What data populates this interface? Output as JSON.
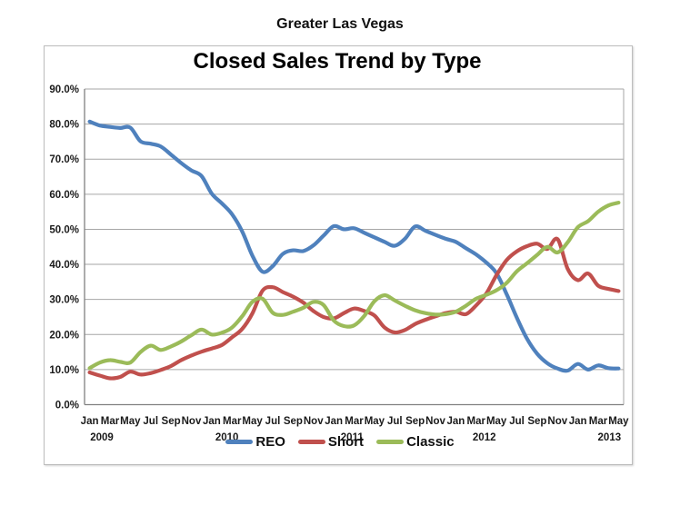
{
  "page": {
    "supertitle": "Greater Las Vegas"
  },
  "chart": {
    "title": "Closed Sales Trend by Type"
  },
  "chart_data": {
    "type": "line",
    "title": "Closed Sales Trend by Type",
    "subtitle": "Greater Las Vegas",
    "x_start": "Jan 2009",
    "x_end": "May 2013",
    "x_unit": "month",
    "n_points": 53,
    "ylim": [
      0,
      90
    ],
    "ytick_step": 10,
    "grid": true,
    "legend_position": "bottom",
    "line_style": "smooth",
    "ytick_labels": [
      "0.0%",
      "10.0%",
      "20.0%",
      "30.0%",
      "40.0%",
      "50.0%",
      "60.0%",
      "70.0%",
      "80.0%",
      "90.0%"
    ],
    "xtick_labels": [
      "Jan",
      "Mar",
      "May",
      "Jul",
      "Sep",
      "Nov",
      "Jan",
      "Mar",
      "May",
      "Jul",
      "Sep",
      "Nov",
      "Jan",
      "Mar",
      "May",
      "Jul",
      "Sep",
      "Nov",
      "Jan",
      "Mar",
      "May",
      "Jul",
      "Sep",
      "Nov",
      "Jan",
      "Mar",
      "May"
    ],
    "xtick_month_indices": [
      0,
      2,
      4,
      6,
      8,
      10,
      12,
      14,
      16,
      18,
      20,
      22,
      24,
      26,
      28,
      30,
      32,
      34,
      36,
      38,
      40,
      42,
      44,
      46,
      48,
      50,
      52
    ],
    "years": [
      {
        "label": "2009",
        "month_index": 1.2
      },
      {
        "label": "2010",
        "month_index": 13.5
      },
      {
        "label": "2011",
        "month_index": 25.8
      },
      {
        "label": "2012",
        "month_index": 38.8
      },
      {
        "label": "2013",
        "month_index": 51.1
      }
    ],
    "series": [
      {
        "name": "REO",
        "color": "#4F81BD",
        "values": [
          80.7,
          79.6,
          79.2,
          78.9,
          79.0,
          75.1,
          74.4,
          73.6,
          71.3,
          68.9,
          66.8,
          65.2,
          60.2,
          57.4,
          54.3,
          49.4,
          42.5,
          37.9,
          39.5,
          43.0,
          44.0,
          43.8,
          45.4,
          48.2,
          50.9,
          50.0,
          50.3,
          49.0,
          47.7,
          46.4,
          45.3,
          47.3,
          50.8,
          49.6,
          48.4,
          47.3,
          46.4,
          44.6,
          42.8,
          40.5,
          37.5,
          31.5,
          24.8,
          18.8,
          14.5,
          11.8,
          10.3,
          9.7,
          11.6,
          10.0,
          11.2,
          10.4,
          10.3
        ]
      },
      {
        "name": "Short",
        "color": "#C0504D",
        "values": [
          9.2,
          8.3,
          7.5,
          7.9,
          9.4,
          8.6,
          9.0,
          9.9,
          11.0,
          12.7,
          14.0,
          15.1,
          16.0,
          17.0,
          19.2,
          21.6,
          26.0,
          32.5,
          33.5,
          32.1,
          30.8,
          29.1,
          26.7,
          25.0,
          24.6,
          26.1,
          27.4,
          26.7,
          25.4,
          22.0,
          20.6,
          21.3,
          23.0,
          24.2,
          25.2,
          26.1,
          26.5,
          25.8,
          28.3,
          31.7,
          36.9,
          41.2,
          43.7,
          45.2,
          45.9,
          44.4,
          47.2,
          38.7,
          35.5,
          37.4,
          33.9,
          33.0,
          32.4
        ]
      },
      {
        "name": "Classic",
        "color": "#9BBB59",
        "values": [
          10.4,
          12.0,
          12.7,
          12.2,
          12.0,
          15.0,
          16.8,
          15.6,
          16.6,
          18.0,
          19.8,
          21.4,
          20.0,
          20.5,
          22.0,
          25.2,
          29.3,
          30.2,
          26.2,
          25.6,
          26.5,
          27.6,
          29.3,
          28.4,
          24.0,
          22.4,
          22.6,
          25.3,
          29.5,
          31.2,
          29.7,
          28.2,
          26.9,
          26.1,
          25.7,
          25.8,
          26.5,
          28.2,
          30.2,
          31.3,
          32.6,
          34.7,
          38.0,
          40.3,
          42.7,
          45.0,
          43.4,
          46.3,
          50.6,
          52.3,
          55.0,
          56.8,
          57.6
        ]
      }
    ],
    "colors": {
      "axis": "#808080",
      "gridline": "#a6a6a6",
      "text": "#1a1a1a"
    }
  }
}
